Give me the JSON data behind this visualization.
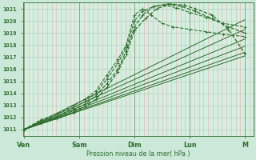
{
  "bg_color": "#cce8d8",
  "plot_bg": "#d4eee0",
  "grid_color_v": "#e8b0b0",
  "grid_color_h": "#b0d4c0",
  "line_color": "#2d6e2d",
  "ylabel_vals": [
    1011,
    1012,
    1013,
    1014,
    1015,
    1016,
    1017,
    1018,
    1019,
    1020,
    1021
  ],
  "x_ticks": [
    0,
    1,
    2,
    3,
    4
  ],
  "x_tick_minor_step": 0.0833,
  "x_labels": [
    "Ven",
    "Sam",
    "Dim",
    "Lun",
    "M"
  ],
  "xlabel": "Pression niveau de la mer( hPa )",
  "xlim": [
    -0.02,
    4.15
  ],
  "ylim": [
    1010.5,
    1021.5
  ],
  "series": [
    {
      "points": [
        [
          0,
          1011
        ],
        [
          0.3,
          1011.8
        ],
        [
          0.6,
          1012.3
        ],
        [
          0.9,
          1013.0
        ],
        [
          1.1,
          1013.5
        ],
        [
          1.3,
          1014.2
        ],
        [
          1.5,
          1015.5
        ],
        [
          1.7,
          1016.8
        ],
        [
          1.85,
          1018.0
        ],
        [
          2.0,
          1020.5
        ],
        [
          2.15,
          1021.0
        ],
        [
          2.3,
          1020.5
        ],
        [
          2.5,
          1019.8
        ],
        [
          2.7,
          1019.5
        ],
        [
          3.0,
          1019.3
        ],
        [
          3.3,
          1019.1
        ],
        [
          3.6,
          1018.9
        ],
        [
          4.0,
          1018.7
        ]
      ],
      "style": "dashed_marker",
      "lw": 0.8
    },
    {
      "points": [
        [
          0,
          1011
        ],
        [
          0.3,
          1011.7
        ],
        [
          0.6,
          1012.1
        ],
        [
          0.9,
          1012.8
        ],
        [
          1.1,
          1013.3
        ],
        [
          1.3,
          1014.0
        ],
        [
          1.5,
          1015.2
        ],
        [
          1.7,
          1016.5
        ],
        [
          1.85,
          1017.8
        ],
        [
          2.0,
          1020.0
        ],
        [
          2.15,
          1020.8
        ],
        [
          2.35,
          1021.2
        ],
        [
          2.55,
          1021.3
        ],
        [
          2.75,
          1021.1
        ],
        [
          3.0,
          1020.7
        ],
        [
          3.3,
          1020.3
        ],
        [
          3.6,
          1019.8
        ],
        [
          4.0,
          1019.5
        ]
      ],
      "style": "dashed_marker",
      "lw": 0.8
    },
    {
      "points": [
        [
          0,
          1011
        ],
        [
          0.3,
          1011.6
        ],
        [
          0.6,
          1012.0
        ],
        [
          0.9,
          1012.6
        ],
        [
          1.1,
          1013.1
        ],
        [
          1.3,
          1013.8
        ],
        [
          1.5,
          1014.8
        ],
        [
          1.7,
          1016.0
        ],
        [
          1.85,
          1017.5
        ],
        [
          2.0,
          1019.5
        ],
        [
          2.15,
          1020.5
        ],
        [
          2.35,
          1021.2
        ],
        [
          2.6,
          1021.4
        ],
        [
          2.85,
          1021.2
        ],
        [
          3.1,
          1020.8
        ],
        [
          3.4,
          1020.2
        ],
        [
          3.7,
          1019.5
        ],
        [
          4.0,
          1019.0
        ]
      ],
      "style": "dashed_marker",
      "lw": 0.9
    },
    {
      "points": [
        [
          0,
          1011
        ],
        [
          0.3,
          1011.5
        ],
        [
          0.6,
          1011.9
        ],
        [
          0.9,
          1012.4
        ],
        [
          1.1,
          1012.9
        ],
        [
          1.3,
          1013.5
        ],
        [
          1.5,
          1014.5
        ],
        [
          1.7,
          1015.8
        ],
        [
          1.85,
          1017.2
        ],
        [
          2.0,
          1019.2
        ],
        [
          2.2,
          1020.2
        ],
        [
          2.4,
          1021.0
        ],
        [
          2.65,
          1021.4
        ],
        [
          2.9,
          1021.3
        ],
        [
          3.1,
          1021.0
        ],
        [
          3.4,
          1020.5
        ],
        [
          3.7,
          1019.3
        ],
        [
          4.0,
          1017.3
        ]
      ],
      "style": "dashed_marker",
      "lw": 0.9
    },
    {
      "points": [
        [
          0,
          1011
        ],
        [
          4.0,
          1017.1
        ]
      ],
      "style": "solid",
      "lw": 0.7
    },
    {
      "points": [
        [
          0,
          1011
        ],
        [
          4.0,
          1017.4
        ]
      ],
      "style": "solid",
      "lw": 0.7
    },
    {
      "points": [
        [
          0,
          1011
        ],
        [
          4.0,
          1017.9
        ]
      ],
      "style": "solid",
      "lw": 0.7
    },
    {
      "points": [
        [
          0,
          1011
        ],
        [
          4.0,
          1018.5
        ]
      ],
      "style": "solid",
      "lw": 0.7
    },
    {
      "points": [
        [
          0,
          1011
        ],
        [
          4.0,
          1019.3
        ]
      ],
      "style": "solid",
      "lw": 0.7
    },
    {
      "points": [
        [
          0,
          1011
        ],
        [
          4.0,
          1020.1
        ]
      ],
      "style": "solid",
      "lw": 0.7
    }
  ]
}
